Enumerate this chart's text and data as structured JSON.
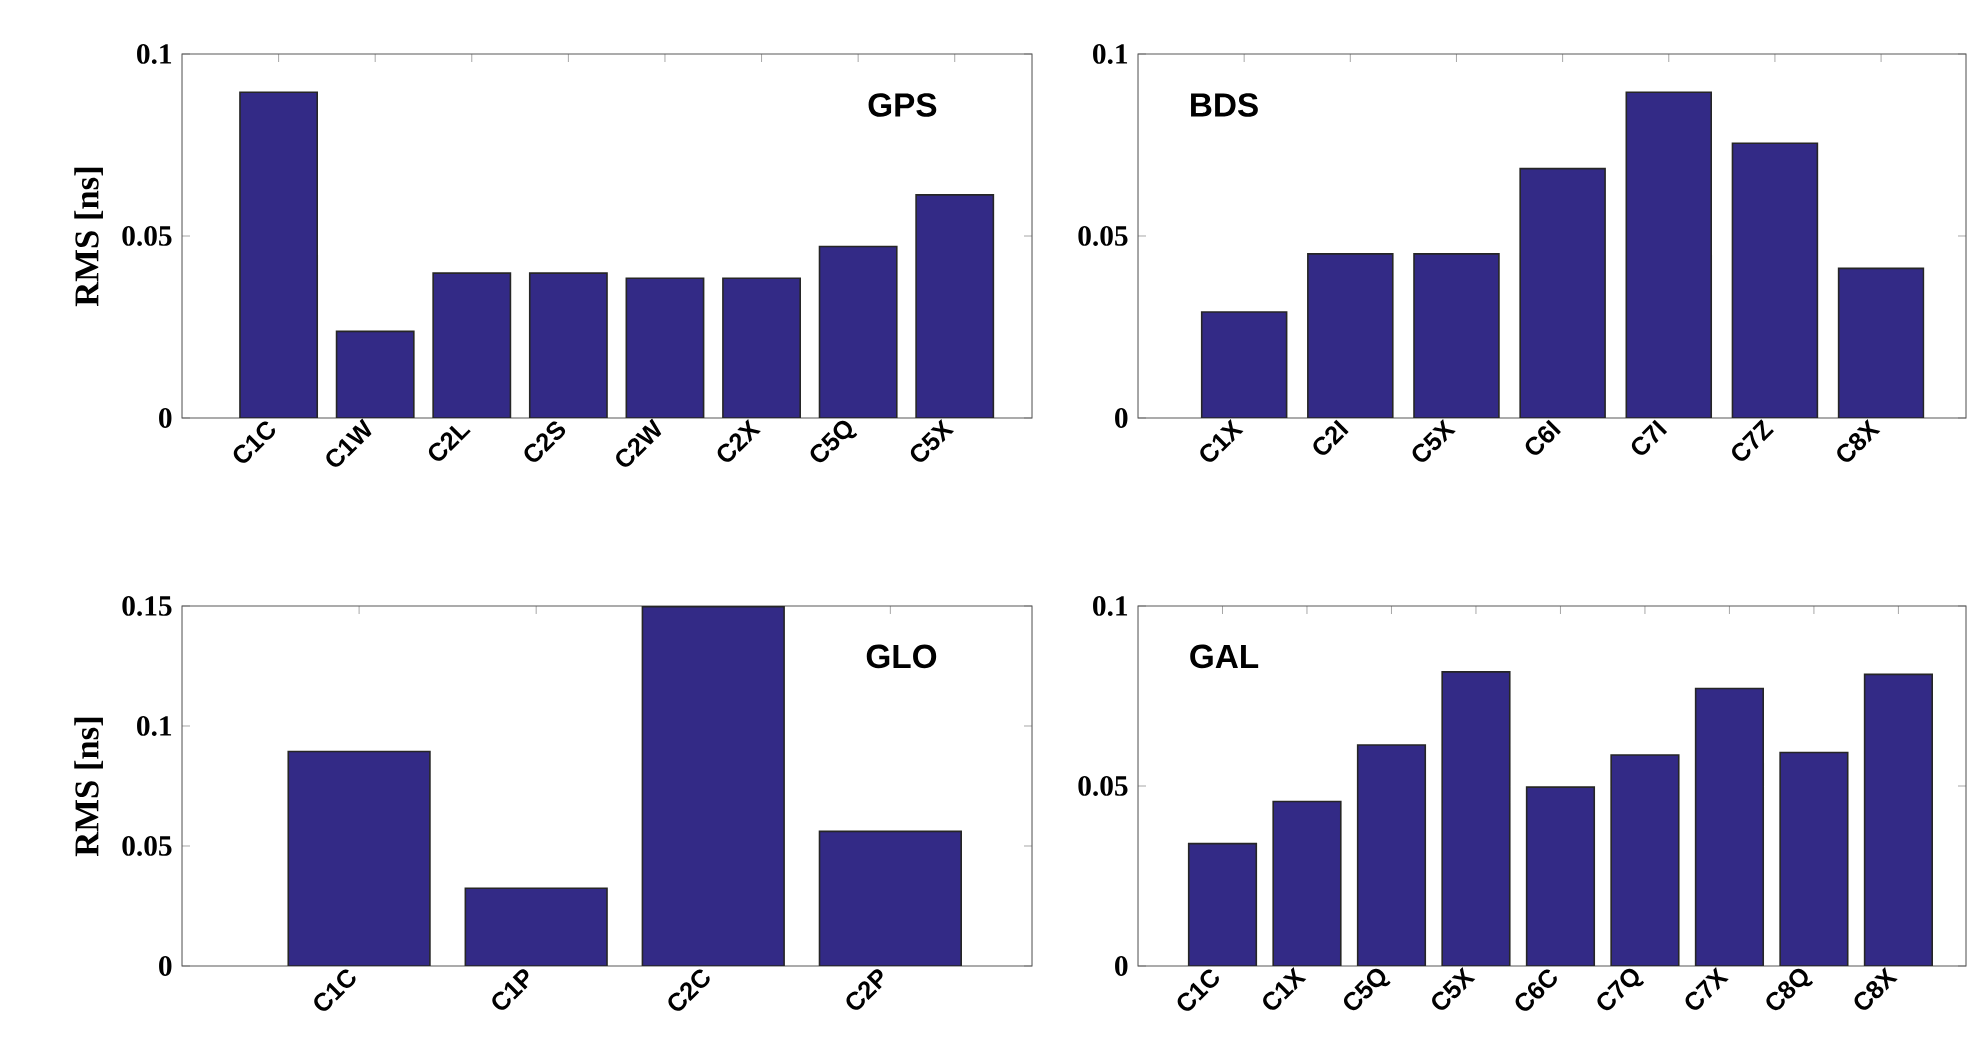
{
  "chart_data": [
    {
      "type": "bar",
      "title": "GPS",
      "ylabel": "RMS [ns]",
      "categories": [
        "C1C",
        "C1W",
        "C2L",
        "C2S",
        "C2W",
        "C2X",
        "C5Q",
        "C5X"
      ],
      "values": [
        0.0895,
        0.0238,
        0.0398,
        0.0398,
        0.0384,
        0.0384,
        0.0471,
        0.0613
      ],
      "color": "#332a86",
      "ylim": [
        0,
        0.1
      ],
      "yticks": [
        0,
        0.05,
        0.1
      ]
    },
    {
      "type": "bar",
      "title": "BDS",
      "categories": [
        "C1X",
        "C2I",
        "C5X",
        "C6I",
        "C7I",
        "C7Z",
        "C8X"
      ],
      "values": [
        0.0291,
        0.0451,
        0.0451,
        0.0685,
        0.0895,
        0.0755,
        0.0411
      ],
      "color": "#332a86",
      "ylim": [
        0,
        0.1
      ],
      "yticks": [
        0,
        0.05,
        0.1
      ]
    },
    {
      "type": "bar",
      "title": "GLO",
      "ylabel": "RMS [ns]",
      "categories": [
        "C1C",
        "C1P",
        "C2C",
        "C2P"
      ],
      "values": [
        0.0894,
        0.0324,
        0.1497,
        0.0561
      ],
      "color": "#332a86",
      "ylim": [
        0,
        0.15
      ],
      "yticks": [
        0,
        0.05,
        0.1,
        0.15
      ]
    },
    {
      "type": "bar",
      "title": "GAL",
      "categories": [
        "C1C",
        "C1X",
        "C5Q",
        "C5X",
        "C6C",
        "C7Q",
        "C7X",
        "C8Q",
        "C8X"
      ],
      "values": [
        0.034,
        0.0457,
        0.0614,
        0.0817,
        0.0497,
        0.0586,
        0.0771,
        0.0593,
        0.081
      ],
      "color": "#332a86",
      "ylim": [
        0,
        0.1
      ],
      "yticks": [
        0,
        0.05,
        0.1
      ]
    }
  ]
}
